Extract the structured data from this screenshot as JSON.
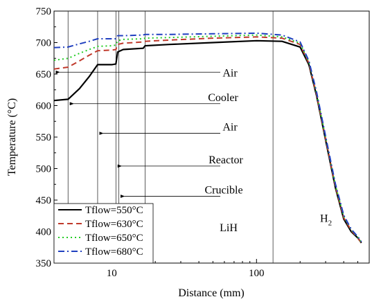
{
  "chart_data": {
    "type": "line",
    "x_scale": "log",
    "xlabel": "Distance (mm)",
    "ylabel": "Temperature (°C)",
    "xlim": [
      4,
      600
    ],
    "ylim": [
      350,
      750
    ],
    "x_ticks": [
      10,
      100
    ],
    "x_tick_labels": [
      "10",
      "100"
    ],
    "y_ticks": [
      350,
      400,
      450,
      500,
      550,
      600,
      650,
      700,
      750
    ],
    "grid": false,
    "legend_position": "bottom-left",
    "series": [
      {
        "name": "Tflow=550°C",
        "color": "#000000",
        "dash": "solid",
        "x": [
          4,
          5,
          6,
          7,
          8,
          10,
          10.7,
          11,
          12,
          16.5,
          17,
          25,
          50,
          100,
          150,
          200,
          230,
          260,
          300,
          350,
          400,
          450,
          500,
          530
        ],
        "y": [
          608,
          610,
          627,
          646,
          665,
          665,
          666,
          685,
          689,
          691,
          695,
          697,
          700,
          703,
          702,
          693,
          665,
          615,
          545,
          470,
          420,
          400,
          390,
          382
        ]
      },
      {
        "name": "Tflow=630°C",
        "color": "#c0392b",
        "dash": "8,5",
        "x": [
          4,
          5,
          6,
          7,
          8,
          10,
          10.7,
          11,
          12,
          16.5,
          17,
          25,
          50,
          100,
          150,
          200,
          230,
          260,
          300,
          350,
          400,
          450,
          500,
          530
        ],
        "y": [
          658,
          661,
          671,
          680,
          687,
          688,
          689,
          697,
          699,
          701,
          702,
          704,
          707,
          709,
          707,
          697,
          667,
          617,
          547,
          472,
          422,
          402,
          390,
          382
        ]
      },
      {
        "name": "Tflow=650°C",
        "color": "#22cc22",
        "dash": "2,4",
        "x": [
          4,
          5,
          6,
          7,
          8,
          10,
          10.7,
          11,
          12,
          16.5,
          17,
          25,
          50,
          100,
          150,
          200,
          230,
          260,
          300,
          350,
          400,
          450,
          500,
          530
        ],
        "y": [
          672,
          675,
          683,
          689,
          694,
          695,
          696,
          703,
          705,
          706,
          707,
          708,
          710,
          712,
          709,
          699,
          669,
          619,
          549,
          474,
          424,
          403,
          391,
          383
        ]
      },
      {
        "name": "Tflow=680°C",
        "color": "#1f3fbf",
        "dash": "9,4,2,4",
        "x": [
          4,
          5,
          6,
          7,
          8,
          10,
          10.7,
          11,
          12,
          16.5,
          17,
          25,
          50,
          100,
          150,
          200,
          230,
          260,
          300,
          350,
          400,
          450,
          500,
          530
        ],
        "y": [
          692,
          693,
          698,
          702,
          706,
          706,
          706,
          711,
          711,
          712,
          713,
          713,
          714,
          715,
          712,
          701,
          671,
          621,
          551,
          476,
          426,
          404,
          392,
          384
        ]
      }
    ],
    "vertical_lines_x": [
      5,
      8,
      10.7,
      11.2,
      17,
      130
    ],
    "annotations": [
      {
        "text": "Air",
        "arrow_from_x": 17,
        "arrow_to_x": 4,
        "y": 653
      },
      {
        "text": "Cooler",
        "arrow_from_x": 17,
        "arrow_to_x": 5,
        "y": 603
      },
      {
        "text": "Air",
        "arrow_from_x": 17,
        "arrow_to_x": 8,
        "y": 556
      },
      {
        "text": "Reactor",
        "arrow_from_x": 17,
        "arrow_to_x": 10.7,
        "y": 504
      },
      {
        "text": "Crucible",
        "arrow_from_x": 17,
        "arrow_to_x": 11.2,
        "y": 456
      },
      {
        "text": "LiH",
        "y": 406
      },
      {
        "text": "H",
        "subscript": "2",
        "y": 420
      }
    ]
  }
}
